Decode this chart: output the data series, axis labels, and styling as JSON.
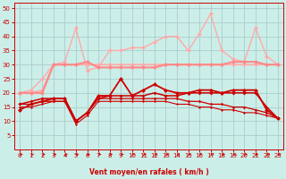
{
  "xlabel": "Vent moyen/en rafales ( km/h )",
  "xlim": [
    -0.5,
    23.5
  ],
  "ylim": [
    0,
    52
  ],
  "yticks": [
    5,
    10,
    15,
    20,
    25,
    30,
    35,
    40,
    45,
    50
  ],
  "xticks": [
    0,
    1,
    2,
    3,
    4,
    5,
    6,
    7,
    8,
    9,
    10,
    11,
    12,
    13,
    14,
    15,
    16,
    17,
    18,
    19,
    20,
    21,
    22,
    23
  ],
  "bg_color": "#cceee8",
  "grid_color": "#aacccc",
  "series": [
    {
      "x": [
        0,
        1,
        2,
        3,
        4,
        5,
        6,
        7,
        8,
        9,
        10,
        11,
        12,
        13,
        14,
        15,
        16,
        17,
        18,
        19,
        20,
        21,
        22,
        23
      ],
      "y": [
        20,
        20,
        21,
        30,
        30,
        30,
        30,
        30,
        30,
        30,
        30,
        30,
        30,
        30,
        30,
        30,
        30,
        30,
        30,
        30,
        30,
        30,
        30,
        30
      ],
      "color": "#ffaaaa",
      "lw": 1.2,
      "ms": 2.5
    },
    {
      "x": [
        0,
        1,
        2,
        3,
        4,
        5,
        6,
        7,
        8,
        9,
        10,
        11,
        12,
        13,
        14,
        15,
        16,
        17,
        18,
        19,
        20,
        21,
        22,
        23
      ],
      "y": [
        20,
        21,
        25,
        30,
        31,
        43,
        28,
        29,
        35,
        35,
        36,
        36,
        38,
        40,
        40,
        35,
        41,
        48,
        35,
        32,
        31,
        43,
        33,
        30
      ],
      "color": "#ffaaaa",
      "lw": 1.0,
      "ms": 2.5
    },
    {
      "x": [
        0,
        1,
        2,
        3,
        4,
        5,
        6,
        7,
        8,
        9,
        10,
        11,
        12,
        13,
        14,
        15,
        16,
        17,
        18,
        19,
        20,
        21,
        22,
        23
      ],
      "y": [
        20,
        20,
        20,
        30,
        30,
        30,
        31,
        29,
        29,
        29,
        29,
        29,
        29,
        30,
        30,
        30,
        30,
        30,
        30,
        31,
        31,
        31,
        30,
        30
      ],
      "color": "#ff8888",
      "lw": 1.5,
      "ms": 2.5
    },
    {
      "x": [
        0,
        1,
        2,
        3,
        4,
        5,
        6,
        7,
        8,
        9,
        10,
        11,
        12,
        13,
        14,
        15,
        16,
        17,
        18,
        19,
        20,
        21,
        22,
        23
      ],
      "y": [
        14,
        16,
        17,
        18,
        18,
        10,
        13,
        19,
        19,
        25,
        19,
        21,
        23,
        21,
        20,
        20,
        21,
        21,
        20,
        21,
        21,
        21,
        14,
        11
      ],
      "color": "#cc0000",
      "lw": 1.3,
      "ms": 2.5
    },
    {
      "x": [
        0,
        1,
        2,
        3,
        4,
        5,
        6,
        7,
        8,
        9,
        10,
        11,
        12,
        13,
        14,
        15,
        16,
        17,
        18,
        19,
        20,
        21,
        22,
        23
      ],
      "y": [
        16,
        17,
        18,
        18,
        18,
        10,
        13,
        18,
        19,
        19,
        19,
        19,
        20,
        19,
        19,
        20,
        20,
        20,
        20,
        20,
        20,
        20,
        15,
        11
      ],
      "color": "#cc0000",
      "lw": 1.1,
      "ms": 2.0
    },
    {
      "x": [
        0,
        1,
        2,
        3,
        4,
        5,
        6,
        7,
        8,
        9,
        10,
        11,
        12,
        13,
        14,
        15,
        16,
        17,
        18,
        19,
        20,
        21,
        22,
        23
      ],
      "y": [
        16,
        16,
        17,
        17,
        17,
        10,
        13,
        18,
        18,
        18,
        18,
        18,
        18,
        18,
        18,
        17,
        17,
        16,
        16,
        15,
        15,
        14,
        13,
        11
      ],
      "color": "#cc0000",
      "lw": 0.9,
      "ms": 1.8
    },
    {
      "x": [
        0,
        1,
        2,
        3,
        4,
        5,
        6,
        7,
        8,
        9,
        10,
        11,
        12,
        13,
        14,
        15,
        16,
        17,
        18,
        19,
        20,
        21,
        22,
        23
      ],
      "y": [
        15,
        15,
        16,
        17,
        17,
        9,
        12,
        17,
        17,
        17,
        17,
        17,
        17,
        17,
        16,
        16,
        15,
        15,
        14,
        14,
        13,
        13,
        12,
        11
      ],
      "color": "#cc0000",
      "lw": 0.8,
      "ms": 1.5
    }
  ],
  "arrow_color": "#cc0000",
  "tick_color": "#cc0000",
  "label_color": "#cc0000",
  "spine_color": "#cc0000"
}
